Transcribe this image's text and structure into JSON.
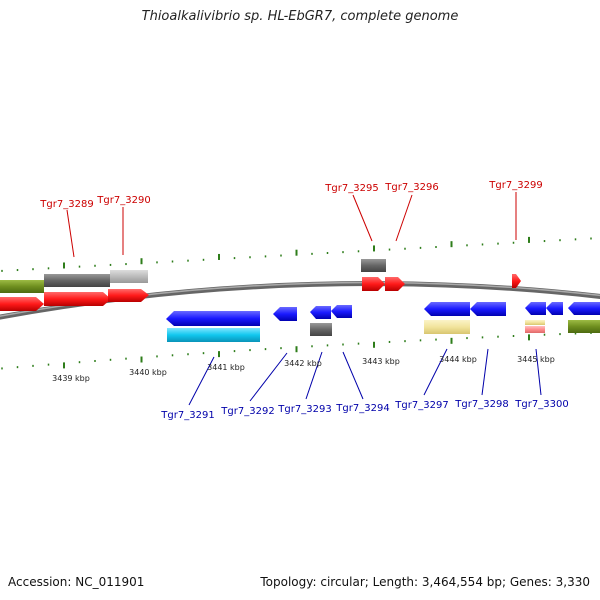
{
  "title": "Thioalkalivibrio sp. HL-EbGR7, complete genome",
  "footer": {
    "accession": "Accession: NC_011901",
    "info": "Topology: circular; Length: 3,464,554 bp; Genes: 3,330"
  },
  "colors": {
    "top_labels": "#cc0000",
    "bottom_labels": "#0000aa",
    "ticks": "#2e7d1a",
    "backbone": "#777777",
    "forward_gene": "#ff1a1a",
    "reverse_gene": "#1a1aff",
    "rna_gene": "#11c7ee",
    "gray_feature": "#666666",
    "olive_feature": "#6f8f1f",
    "yellow_feature": "#f2e49c",
    "pink_feature": "#ff8c8c"
  },
  "scale_labels": [
    "3439 kbp",
    "3440 kbp",
    "3441 kbp",
    "3442 kbp",
    "3443 kbp",
    "3444 kbp",
    "3445 kbp"
  ],
  "top_gene_labels": [
    "Tgr7_3289",
    "Tgr7_3290",
    "Tgr7_3295",
    "Tgr7_3296",
    "Tgr7_3299"
  ],
  "bottom_gene_labels": [
    "Tgr7_3291",
    "Tgr7_3292",
    "Tgr7_3293",
    "Tgr7_3294",
    "Tgr7_3297",
    "Tgr7_3298",
    "Tgr7_3300"
  ]
}
